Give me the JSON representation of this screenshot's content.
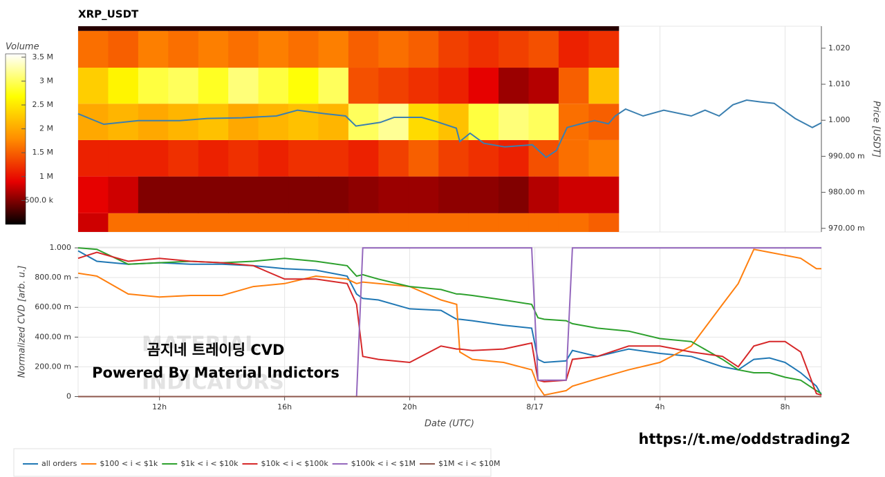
{
  "chart_data": [
    {
      "type": "heatmap",
      "title": "XRP_USDT",
      "ylabel": "Price [USDT]",
      "ylim": [
        0.969,
        1.0261
      ],
      "yticks": [
        {
          "value": 0.97,
          "label": "970.00 m"
        },
        {
          "value": 0.98,
          "label": "980.00 m"
        },
        {
          "value": 0.99,
          "label": "990.00 m"
        },
        {
          "value": 1.0,
          "label": "1.000"
        },
        {
          "value": 1.01,
          "label": "1.010"
        },
        {
          "value": 1.02,
          "label": "1.020"
        }
      ],
      "x_edges": [
        9.4,
        10.36,
        11.32,
        12.28,
        13.24,
        14.2,
        15.16,
        16.12,
        17.08,
        18.04,
        19.0,
        19.96,
        20.92,
        21.88,
        22.84,
        23.8,
        24.76,
        25.72,
        26.68
      ],
      "y_edges": [
        0.969,
        0.9742,
        0.9844,
        0.9945,
        1.0046,
        1.0146,
        1.0248,
        1.0261
      ],
      "cells": [
        [
          800000,
          1600000,
          1600000,
          1600000,
          1600000,
          1600000,
          1600000,
          1600000,
          1600000,
          1600000,
          1600000,
          1600000,
          1600000,
          1600000,
          1600000,
          1600000,
          1600000,
          1500000
        ],
        [
          900000,
          800000,
          500000,
          500000,
          500000,
          500000,
          500000,
          500000,
          500000,
          550000,
          600000,
          600000,
          550000,
          550000,
          500000,
          700000,
          800000,
          800000
        ],
        [
          1100000,
          1100000,
          1100000,
          1200000,
          1100000,
          1200000,
          1100000,
          1200000,
          1200000,
          1100000,
          1300000,
          1500000,
          1300000,
          1200000,
          1100000,
          1400000,
          1600000,
          1700000
        ],
        [
          2000000,
          2100000,
          2000000,
          2100000,
          2200000,
          2000000,
          2100000,
          2200000,
          2100000,
          3000000,
          3200000,
          2400000,
          2200000,
          2900000,
          3100000,
          3000000,
          1600000,
          1500000
        ],
        [
          2300000,
          2600000,
          2900000,
          3000000,
          2800000,
          3100000,
          2900000,
          2700000,
          3000000,
          1400000,
          1300000,
          1200000,
          1100000,
          900000,
          600000,
          700000,
          1500000,
          2200000
        ],
        [
          1600000,
          1500000,
          1700000,
          1600000,
          1700000,
          1600000,
          1700000,
          1600000,
          1700000,
          1500000,
          1600000,
          1500000,
          1300000,
          1200000,
          1300000,
          1400000,
          1100000,
          1200000
        ],
        [
          150000,
          150000,
          150000,
          150000,
          150000,
          150000,
          150000,
          150000,
          150000,
          150000,
          150000,
          150000,
          150000,
          150000,
          150000,
          150000,
          150000,
          150000
        ]
      ],
      "colorbar": {
        "title": "Volume",
        "lim": [
          0,
          3570000
        ],
        "ticks": [
          {
            "value": 500000,
            "label": "500.0 k"
          },
          {
            "value": 1000000,
            "label": "1 M"
          },
          {
            "value": 1500000,
            "label": "1.5 M"
          },
          {
            "value": 2000000,
            "label": "2 M"
          },
          {
            "value": 2500000,
            "label": "2.5 M"
          },
          {
            "value": 3000000,
            "label": "3 M"
          },
          {
            "value": 3500000,
            "label": "3.5 M"
          }
        ],
        "colors": [
          "#000000",
          "#e60000",
          "#ff8c00",
          "#ffff00",
          "#ffffff"
        ]
      },
      "line": {
        "color": "#3a7fb0",
        "x": [
          9.4,
          10.22,
          11.32,
          12.65,
          13.53,
          14.64,
          15.74,
          16.41,
          17.29,
          17.95,
          18.28,
          19.06,
          19.5,
          20.38,
          20.83,
          21.49,
          21.6,
          21.93,
          22.37,
          23.04,
          23.92,
          24.36,
          24.69,
          25.03,
          25.47,
          25.91,
          26.35,
          26.57,
          26.9,
          27.46,
          28.12,
          29.0,
          29.44,
          29.89,
          30.33,
          30.77,
          31.21,
          31.65,
          32.32,
          32.87,
          33.16
        ],
        "values": [
          1.0018,
          0.9989,
          0.9999,
          0.9999,
          1.0005,
          1.0007,
          1.0012,
          1.0028,
          1.0018,
          1.0012,
          0.9984,
          0.9994,
          1.0008,
          1.0008,
          0.9997,
          0.9978,
          0.9941,
          0.9964,
          0.9936,
          0.9926,
          0.9932,
          0.9897,
          0.9916,
          0.998,
          0.999,
          0.9999,
          0.999,
          1.0012,
          1.0031,
          1.0012,
          1.0028,
          1.0012,
          1.0028,
          1.0012,
          1.0043,
          1.0056,
          1.0051,
          1.0047,
          1.0005,
          0.998,
          0.9993
        ]
      },
      "grid": true
    },
    {
      "type": "line",
      "xlabel": "Date (UTC)",
      "ylabel": "Normalized CVD [arb. u.]",
      "xlim": [
        9.4,
        33.16
      ],
      "xticks": [
        {
          "value": 12,
          "label": "12h"
        },
        {
          "value": 16,
          "label": "16h"
        },
        {
          "value": 20,
          "label": "20h"
        },
        {
          "value": 24,
          "label": "8/17"
        },
        {
          "value": 28,
          "label": "4h"
        },
        {
          "value": 32,
          "label": "8h"
        }
      ],
      "ylim": [
        0,
        1.005
      ],
      "yticks": [
        0,
        {
          "value": 0.2,
          "label": "200.00 m"
        },
        {
          "value": 0.4,
          "label": "400.00 m"
        },
        {
          "value": 0.6,
          "label": "600.00 m"
        },
        {
          "value": 0.8,
          "label": "800.00 m"
        },
        {
          "value": 1.0,
          "label": "1.000"
        }
      ],
      "grid": true,
      "x": [
        9.4,
        10,
        11,
        12,
        13,
        14,
        15,
        16,
        17,
        18,
        18.3,
        18.5,
        19,
        20,
        21,
        21.5,
        21.6,
        22,
        23,
        23.9,
        24.1,
        24.3,
        25,
        25.2,
        26,
        27,
        28,
        29,
        30,
        30.5,
        31,
        31.5,
        32,
        32.5,
        33,
        33.16
      ],
      "series": [
        {
          "name": "all orders",
          "color": "#1f77b4",
          "values": [
            0.98,
            0.91,
            0.89,
            0.9,
            0.89,
            0.89,
            0.88,
            0.86,
            0.85,
            0.81,
            0.69,
            0.66,
            0.65,
            0.59,
            0.58,
            0.52,
            0.52,
            0.51,
            0.48,
            0.46,
            0.25,
            0.23,
            0.24,
            0.31,
            0.27,
            0.32,
            0.29,
            0.27,
            0.2,
            0.18,
            0.25,
            0.26,
            0.23,
            0.16,
            0.07,
            0.01
          ]
        },
        {
          "name": "$100 < i < $1k",
          "color": "#ff7f0e",
          "values": [
            0.83,
            0.81,
            0.69,
            0.67,
            0.68,
            0.68,
            0.74,
            0.76,
            0.81,
            0.79,
            0.76,
            0.77,
            0.76,
            0.74,
            0.65,
            0.62,
            0.3,
            0.25,
            0.23,
            0.18,
            0.07,
            0.01,
            0.04,
            0.07,
            0.12,
            0.18,
            0.23,
            0.34,
            0.62,
            0.76,
            0.99,
            0.97,
            0.95,
            0.93,
            0.86,
            0.86
          ]
        },
        {
          "name": "$1k < i < $10k",
          "color": "#2ca02c",
          "values": [
            1.0,
            0.99,
            0.89,
            0.9,
            0.91,
            0.9,
            0.91,
            0.93,
            0.91,
            0.88,
            0.81,
            0.82,
            0.79,
            0.74,
            0.72,
            0.69,
            0.69,
            0.68,
            0.65,
            0.62,
            0.53,
            0.52,
            0.51,
            0.49,
            0.46,
            0.44,
            0.39,
            0.37,
            0.25,
            0.18,
            0.16,
            0.16,
            0.13,
            0.11,
            0.04,
            0.02
          ]
        },
        {
          "name": "$10k < i < $100k",
          "color": "#d62728",
          "values": [
            0.93,
            0.97,
            0.91,
            0.93,
            0.91,
            0.9,
            0.88,
            0.79,
            0.79,
            0.76,
            0.62,
            0.27,
            0.25,
            0.23,
            0.34,
            0.32,
            0.32,
            0.31,
            0.32,
            0.36,
            0.11,
            0.1,
            0.11,
            0.25,
            0.27,
            0.34,
            0.34,
            0.3,
            0.27,
            0.2,
            0.34,
            0.37,
            0.37,
            0.3,
            0.02,
            0.01
          ]
        },
        {
          "name": "$100k < i < $1M",
          "color": "#9467bd",
          "values": [
            0,
            0,
            0,
            0,
            0,
            0,
            0,
            0,
            0,
            0,
            0,
            1,
            1,
            1,
            1,
            1,
            1,
            1,
            1,
            1,
            0.11,
            0.11,
            0.11,
            1,
            1,
            1,
            1,
            1,
            1,
            1,
            1,
            1,
            1,
            1,
            1,
            1
          ]
        },
        {
          "name": "$1M < i < $10M",
          "color": "#8c564b",
          "values": [
            0,
            0,
            0,
            0,
            0,
            0,
            0,
            0,
            0,
            0,
            0,
            0,
            0,
            0,
            0,
            0,
            0,
            0,
            0,
            0,
            0,
            0,
            0,
            0,
            0,
            0,
            0,
            0,
            0,
            0,
            0,
            0,
            0,
            0,
            0,
            0
          ]
        }
      ],
      "annotations": [
        "곰지네 트레이딩 CVD",
        "Powered By Material Indictors",
        "https://t.me/oddstrading2",
        "MATERIAL",
        "INDICATORS"
      ]
    }
  ]
}
